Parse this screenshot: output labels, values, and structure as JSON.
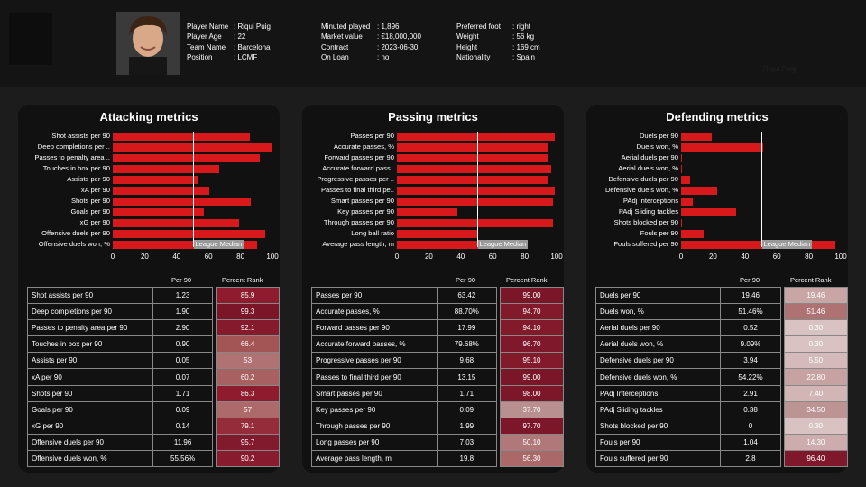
{
  "player": {
    "rows_left": [
      {
        "k": "Player Name",
        "v": "Riqui Puig"
      },
      {
        "k": "Player Age",
        "v": "22"
      },
      {
        "k": "Team Name",
        "v": "Barcelona"
      },
      {
        "k": "Position",
        "v": "LCMF"
      }
    ],
    "rows_mid": [
      {
        "k": "Minuted played",
        "v": "1,896"
      },
      {
        "k": "Market value",
        "v": "€18,000,000"
      },
      {
        "k": "Contract",
        "v": "2023-06-30"
      },
      {
        "k": "On Loan",
        "v": "no"
      }
    ],
    "rows_right": [
      {
        "k": "Preferred foot",
        "v": "right"
      },
      {
        "k": "Weight",
        "v": "56 kg"
      },
      {
        "k": "Height",
        "v": "169 cm"
      },
      {
        "k": "Nationality",
        "v": "Spain"
      }
    ],
    "corner_name": "Riqui Puig"
  },
  "common": {
    "median_label": "League Median",
    "col_per90": "Per 90",
    "col_rank": "Percent Rank",
    "ticks": [
      "0",
      "20",
      "40",
      "60",
      "80",
      "100"
    ],
    "bar_color": "#d7191c"
  },
  "chart_data": [
    {
      "type": "bar",
      "title": "Attacking metrics",
      "median": 50,
      "xlim": [
        0,
        100
      ],
      "categories": [
        "Shot assists per 90",
        "Deep completions per ..",
        "Passes to penalty area ..",
        "Touches in box per 90",
        "Assists per 90",
        "xA per 90",
        "Shots per 90",
        "Goals per 90",
        "xG per 90",
        "Offensive duels per 90",
        "Offensive duels won, %"
      ],
      "values": [
        85.9,
        99.3,
        92.1,
        66.4,
        53,
        60.2,
        86.3,
        57,
        79.1,
        95.7,
        90.2
      ],
      "table": [
        {
          "name": "Shot assists per 90",
          "per90": "1.23",
          "rank": "85.9",
          "color": "#8e1c2e"
        },
        {
          "name": "Deep completions per 90",
          "per90": "1.90",
          "rank": "99.3",
          "color": "#7a1628"
        },
        {
          "name": "Passes to penalty area per 90",
          "per90": "2.90",
          "rank": "92.1",
          "color": "#851a2c"
        },
        {
          "name": "Touches in box per 90",
          "per90": "0.90",
          "rank": "66.4",
          "color": "#a35555"
        },
        {
          "name": "Assists per 90",
          "per90": "0.05",
          "rank": "53",
          "color": "#b07272"
        },
        {
          "name": "xA per 90",
          "per90": "0.07",
          "rank": "60.2",
          "color": "#a86060"
        },
        {
          "name": "Shots per 90",
          "per90": "1.71",
          "rank": "86.3",
          "color": "#8e1c2e"
        },
        {
          "name": "Goals per 90",
          "per90": "0.09",
          "rank": "57",
          "color": "#ac6a6a"
        },
        {
          "name": "xG per 90",
          "per90": "0.14",
          "rank": "79.1",
          "color": "#952c3a"
        },
        {
          "name": "Offensive duels per 90",
          "per90": "11.96",
          "rank": "95.7",
          "color": "#801a2c"
        },
        {
          "name": "Offensive duels won, %",
          "per90": "55.56%",
          "rank": "90.2",
          "color": "#881c2e"
        }
      ]
    },
    {
      "type": "bar",
      "title": "Passing metrics",
      "median": 50,
      "xlim": [
        0,
        100
      ],
      "categories": [
        "Passes per 90",
        "Accurate passes, %",
        "Forward passes per 90",
        "Accurate forward pass..",
        "Progressive passes per ..",
        "Passes to final third pe..",
        "Smart passes per 90",
        "Key passes per 90",
        "Through passes per 90",
        "Long ball ratio",
        "Average pass length, m"
      ],
      "values": [
        99,
        94.7,
        94.1,
        96.7,
        95.1,
        99,
        98,
        37.7,
        97.7,
        50.1,
        56.3
      ],
      "table": [
        {
          "name": "Passes per 90",
          "per90": "63.42",
          "rank": "99.00",
          "color": "#7a1628"
        },
        {
          "name": "Accurate passes, %",
          "per90": "88.70%",
          "rank": "94.70",
          "color": "#821a2c"
        },
        {
          "name": "Forward passes per 90",
          "per90": "17.99",
          "rank": "94.10",
          "color": "#831a2c"
        },
        {
          "name": "Accurate forward passes, %",
          "per90": "79.68%",
          "rank": "96.70",
          "color": "#7e182a"
        },
        {
          "name": "Progressive passes per 90",
          "per90": "9.68",
          "rank": "95.10",
          "color": "#821a2c"
        },
        {
          "name": "Passes to final third per 90",
          "per90": "13.15",
          "rank": "99.00",
          "color": "#7a1628"
        },
        {
          "name": "Smart passes per 90",
          "per90": "1.71",
          "rank": "98.00",
          "color": "#7c1629"
        },
        {
          "name": "Key passes per 90",
          "per90": "0.09",
          "rank": "37.70",
          "color": "#b99090"
        },
        {
          "name": "Through passes per 90",
          "per90": "1.99",
          "rank": "97.70",
          "color": "#7c1629"
        },
        {
          "name": "Long passes per 90",
          "per90": "7.03",
          "rank": "50.10",
          "color": "#b07878"
        },
        {
          "name": "Average pass length, m",
          "per90": "19.8",
          "rank": "56.30",
          "color": "#ab6868"
        }
      ]
    },
    {
      "type": "bar",
      "title": "Defending metrics",
      "median": 50,
      "xlim": [
        0,
        100
      ],
      "categories": [
        "Duels per 90",
        "Duels won, %",
        "Aerial duels per 90",
        "Aerial duels won, %",
        "Defensive duels per 90",
        "Defensive duels won, %",
        "PAdj Interceptions",
        "PAdj Sliding tackles",
        "Shots blocked per 90",
        "Fouls per 90",
        "Fouls suffered per 90"
      ],
      "values": [
        19.46,
        51.46,
        0.3,
        0.3,
        5.5,
        22.8,
        7.4,
        34.5,
        0.3,
        14.3,
        96.4
      ],
      "table": [
        {
          "name": "Duels per 90",
          "per90": "19.46",
          "rank": "19.46",
          "color": "#c9a6a6"
        },
        {
          "name": "Duels won, %",
          "per90": "51.46%",
          "rank": "51.46",
          "color": "#ae7272"
        },
        {
          "name": "Aerial duels per 90",
          "per90": "0.52",
          "rank": "0.30",
          "color": "#d8c2c2"
        },
        {
          "name": "Aerial duels won, %",
          "per90": "9.09%",
          "rank": "0.30",
          "color": "#d8c2c2"
        },
        {
          "name": "Defensive duels per 90",
          "per90": "3.94",
          "rank": "5.50",
          "color": "#d4baba"
        },
        {
          "name": "Defensive duels won, %",
          "per90": "54.22%",
          "rank": "22.80",
          "color": "#c7a2a2"
        },
        {
          "name": "PAdj Interceptions",
          "per90": "2.91",
          "rank": "7.40",
          "color": "#d2b6b6"
        },
        {
          "name": "PAdj Sliding tackles",
          "per90": "0.38",
          "rank": "34.50",
          "color": "#bc9494"
        },
        {
          "name": "Shots blocked per 90",
          "per90": "0",
          "rank": "0.30",
          "color": "#d8c2c2"
        },
        {
          "name": "Fouls per 90",
          "per90": "1.04",
          "rank": "14.30",
          "color": "#ccacac"
        },
        {
          "name": "Fouls suffered per 90",
          "per90": "2.8",
          "rank": "96.40",
          "color": "#7e182a"
        }
      ]
    }
  ]
}
